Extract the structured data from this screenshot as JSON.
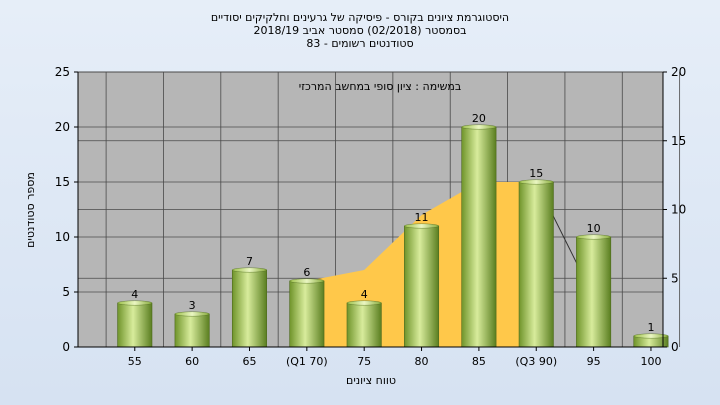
{
  "chart_data": {
    "type": "bar",
    "title_lines": [
      "היסטוגרמת ציונים בקורס - פיסיקה של גרעינים וחלקיקים יסודיים",
      "בסמסטר  (02/2018)  סמסטר אביב 2018/19",
      "סטודנטים רשומים - 83"
    ],
    "subtitle": "במשימה : ציון סופי במחשב המרכזי",
    "xlabel": "טווח ציונים",
    "ylabel": "מספר סטודנטים",
    "categories": [
      "55",
      "60",
      "65",
      "(Q1 70)",
      "75",
      "80",
      "85",
      "(Q3 90)",
      "95",
      "100"
    ],
    "values": [
      4,
      3,
      7,
      6,
      4,
      11,
      20,
      15,
      10,
      1
    ],
    "ylim": [
      0,
      25
    ],
    "yticks": [
      "0",
      "5",
      "10",
      "15",
      "20",
      "25"
    ],
    "y2lim": [
      0,
      20
    ],
    "y2ticks": [
      "0",
      "5",
      "10",
      "15",
      "20"
    ],
    "area": [
      {
        "x": "(Q1 70)",
        "y": 6
      },
      {
        "x": "75",
        "y": 7
      },
      {
        "x": "80",
        "y": 12
      },
      {
        "x": "85",
        "y": 15
      },
      {
        "x": "(Q3 90)",
        "y": 15
      }
    ],
    "grid": true,
    "colors": {
      "bar_light": "#d8ec9c",
      "bar_mid": "#9cc04a",
      "bar_dark": "#5a7e20",
      "area": "#ffc84a",
      "plot_bg": "#b6b6b6",
      "page_bg": "#dce6f4"
    }
  }
}
